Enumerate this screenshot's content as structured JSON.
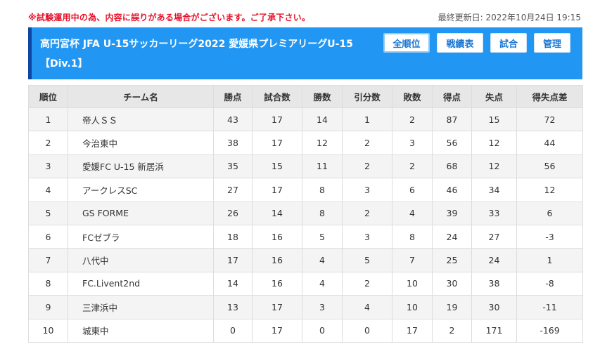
{
  "notice": "※試験運用中の為、内容に誤りがある場合がございます。ご了承下さい。",
  "updated": "最終更新日: 2022年10月24日 19:15",
  "header": {
    "title": "高円宮杯 JFA U-15サッカーリーグ2022 愛媛県プレミアリーグU-15 【Div.1】",
    "buttons": {
      "all_ranking": "全順位",
      "record": "戦績表",
      "match": "試合",
      "admin": "管理"
    }
  },
  "table": {
    "columns": [
      "順位",
      "チーム名",
      "勝点",
      "試合数",
      "勝数",
      "引分数",
      "敗数",
      "得点",
      "失点",
      "得失点差"
    ],
    "rows": [
      [
        "1",
        "帝人ＳＳ",
        "43",
        "17",
        "14",
        "1",
        "2",
        "87",
        "15",
        "72"
      ],
      [
        "2",
        "今治東中",
        "38",
        "17",
        "12",
        "2",
        "3",
        "56",
        "12",
        "44"
      ],
      [
        "3",
        "愛媛FC U-15 新居浜",
        "35",
        "15",
        "11",
        "2",
        "2",
        "68",
        "12",
        "56"
      ],
      [
        "4",
        "アークレスSC",
        "27",
        "17",
        "8",
        "3",
        "6",
        "46",
        "34",
        "12"
      ],
      [
        "5",
        "GS FORME",
        "26",
        "14",
        "8",
        "2",
        "4",
        "39",
        "33",
        "6"
      ],
      [
        "6",
        "FCゼブラ",
        "18",
        "16",
        "5",
        "3",
        "8",
        "24",
        "27",
        "-3"
      ],
      [
        "7",
        "八代中",
        "17",
        "16",
        "4",
        "5",
        "7",
        "25",
        "24",
        "1"
      ],
      [
        "8",
        "FC.Livent2nd",
        "14",
        "16",
        "4",
        "2",
        "10",
        "30",
        "38",
        "-8"
      ],
      [
        "9",
        "三津浜中",
        "13",
        "17",
        "3",
        "4",
        "10",
        "19",
        "30",
        "-11"
      ],
      [
        "10",
        "城東中",
        "0",
        "17",
        "0",
        "0",
        "17",
        "2",
        "171",
        "-169"
      ]
    ]
  },
  "colors": {
    "header_bg": "#2196f3",
    "header_accent": "#0d47a1",
    "notice": "#e8132b",
    "button_text": "#1976d2"
  }
}
